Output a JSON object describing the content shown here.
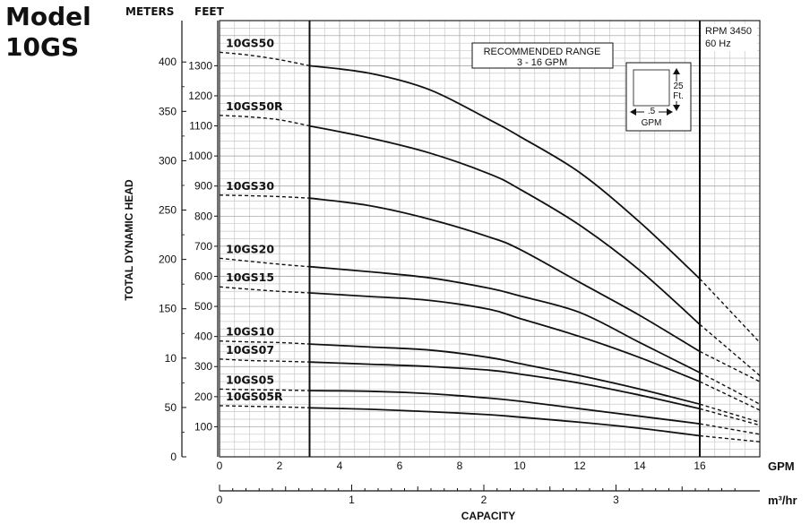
{
  "title": {
    "line1": "Model",
    "line2": "10GS"
  },
  "header": {
    "meters": "METERS",
    "feet": "FEET"
  },
  "chart_data": {
    "type": "line",
    "ylabel": "TOTAL DYNAMIC HEAD",
    "xlabel": "CAPACITY",
    "x_unit": "GPM",
    "x2_unit": "m³/hr",
    "xlim": [
      0,
      18
    ],
    "ylim_ft": [
      0,
      1400
    ],
    "x_ticks": [
      "0",
      "2",
      "4",
      "6",
      "8",
      "10",
      "12",
      "14",
      "16"
    ],
    "x2_ticks": [
      "0",
      "1",
      "2",
      "3"
    ],
    "ft_ticks": [
      "100",
      "200",
      "300",
      "400",
      "500",
      "600",
      "700",
      "800",
      "900",
      "1000",
      "1100",
      "1200",
      "1300"
    ],
    "m_ticks": [
      "0",
      "50",
      "10",
      "150",
      "200",
      "250",
      "300",
      "350",
      "400"
    ],
    "recommended_range": {
      "label": "RECOMMENDED RANGE",
      "range": "3 - 16 GPM",
      "from_gpm": 3,
      "to_gpm": 16
    },
    "rpm_note": {
      "line1": "RPM 3450",
      "line2": "60 Hz"
    },
    "scale_box": {
      "v1": "25",
      "v2": "Ft.",
      "h1": ".5",
      "h2": "GPM"
    },
    "series": [
      {
        "name": "10GS50",
        "x": [
          0,
          1,
          2,
          3,
          5,
          7,
          9,
          10,
          12,
          14,
          16,
          18
        ],
        "y": [
          1345,
          1335,
          1320,
          1300,
          1275,
          1220,
          1120,
          1065,
          945,
          780,
          592,
          380
        ]
      },
      {
        "name": "10GS50R",
        "x": [
          0,
          1,
          2,
          3,
          5,
          7,
          9,
          10,
          12,
          14,
          16,
          18
        ],
        "y": [
          1135,
          1130,
          1120,
          1100,
          1060,
          1010,
          940,
          890,
          770,
          620,
          440,
          270
        ]
      },
      {
        "name": "10GS30",
        "x": [
          0,
          1,
          2,
          3,
          5,
          7,
          9,
          10,
          12,
          14,
          16,
          18
        ],
        "y": [
          870,
          868,
          865,
          860,
          835,
          790,
          730,
          690,
          580,
          470,
          350,
          250
        ]
      },
      {
        "name": "10GS20",
        "x": [
          0,
          1,
          2,
          3,
          5,
          7,
          9,
          10,
          12,
          14,
          16,
          18
        ],
        "y": [
          660,
          650,
          640,
          632,
          615,
          595,
          560,
          535,
          480,
          380,
          280,
          175
        ]
      },
      {
        "name": "10GS15",
        "x": [
          0,
          1,
          2,
          3,
          5,
          7,
          9,
          10,
          12,
          14,
          16,
          18
        ],
        "y": [
          565,
          557,
          550,
          545,
          533,
          520,
          490,
          460,
          400,
          330,
          250,
          155
        ]
      },
      {
        "name": "10GS10",
        "x": [
          0,
          1,
          2,
          3,
          5,
          7,
          9,
          10,
          12,
          14,
          16,
          18
        ],
        "y": [
          385,
          382,
          380,
          375,
          365,
          355,
          330,
          310,
          270,
          225,
          175,
          115
        ]
      },
      {
        "name": "10GS07",
        "x": [
          0,
          1,
          2,
          3,
          5,
          7,
          9,
          10,
          12,
          14,
          16,
          18
        ],
        "y": [
          325,
          320,
          318,
          315,
          308,
          300,
          288,
          275,
          245,
          205,
          160,
          105
        ]
      },
      {
        "name": "10GS05",
        "x": [
          0,
          1,
          2,
          3,
          5,
          7,
          9,
          10,
          12,
          14,
          16,
          18
        ],
        "y": [
          225,
          223,
          222,
          220,
          218,
          210,
          195,
          185,
          160,
          135,
          110,
          75
        ]
      },
      {
        "name": "10GS05R",
        "x": [
          0,
          1,
          2,
          3,
          5,
          7,
          9,
          10,
          12,
          14,
          16,
          18
        ],
        "y": [
          170,
          168,
          166,
          163,
          158,
          150,
          140,
          132,
          115,
          95,
          70,
          50
        ]
      }
    ]
  }
}
